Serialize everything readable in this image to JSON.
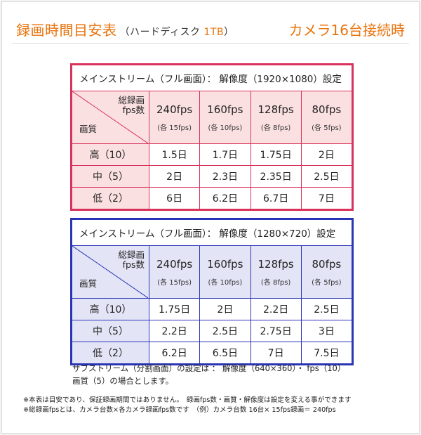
{
  "header": {
    "title_main": "録画時間目安表",
    "title_sub_prefix": "（ハードディスク ",
    "title_sub_capacity": "1TB",
    "title_sub_suffix": "）",
    "right_title": "カメラ16台接続時"
  },
  "table1": {
    "caption": "メインストリーム（フル画面）： 解像度（1920×1080）設定",
    "corner_top": "総録画\nfps数",
    "corner_bottom": "画質",
    "columns": [
      {
        "fps": "240fps",
        "note": "(各 15fps)"
      },
      {
        "fps": "160fps",
        "note": "(各 10fps)"
      },
      {
        "fps": "128fps",
        "note": "(各 8fps)"
      },
      {
        "fps": "80fps",
        "note": "(各 5fps)"
      }
    ],
    "rows": [
      {
        "label": "高（10）",
        "values": [
          "1.5日",
          "1.7日",
          "1.75日",
          "2日"
        ]
      },
      {
        "label": "中（5）",
        "values": [
          "2日",
          "2.3日",
          "2.35日",
          "2.5日"
        ]
      },
      {
        "label": "低（2）",
        "values": [
          "6日",
          "6.2日",
          "6.7日",
          "7日"
        ]
      }
    ]
  },
  "table2": {
    "caption": "メインストリーム（フル画面）： 解像度（1280×720）設定",
    "corner_top": "総録画\nfps数",
    "corner_bottom": "画質",
    "columns": [
      {
        "fps": "240fps",
        "note": "(各 15fps)"
      },
      {
        "fps": "160fps",
        "note": "(各 10fps)"
      },
      {
        "fps": "128fps",
        "note": "(各 8fps)"
      },
      {
        "fps": "80fps",
        "note": "(各 5fps)"
      }
    ],
    "rows": [
      {
        "label": "高（10）",
        "values": [
          "1.75日",
          "2日",
          "2.2日",
          "2.5日"
        ]
      },
      {
        "label": "中（5）",
        "values": [
          "2.2日",
          "2.5日",
          "2.75日",
          "3日"
        ]
      },
      {
        "label": "低（2）",
        "values": [
          "6.2日",
          "6.5日",
          "7日",
          "7.5日"
        ]
      }
    ]
  },
  "notes": {
    "substream_line1": "サブストリーム（分割画面）の設定は ： 解像度（640×360）・ fps（10）",
    "substream_line2": "画質（5）の場合とします。",
    "footnote1": "※本表は目安であり、保証録画期間ではありません。　録画fps数・画質・解像度は設定を変える事ができます",
    "footnote2": "※総録画fpsとは、カメラ台数×各カメラ録画fps数です　（例）カメラ台数 16台× 15fps録画＝ 240fps"
  },
  "colors": {
    "accent_orange": "#e8730c",
    "table1_border": "#d9325a",
    "table1_fill": "#fbe0e2",
    "table2_border": "#2a35b5",
    "table2_fill": "#e3e5f6"
  }
}
